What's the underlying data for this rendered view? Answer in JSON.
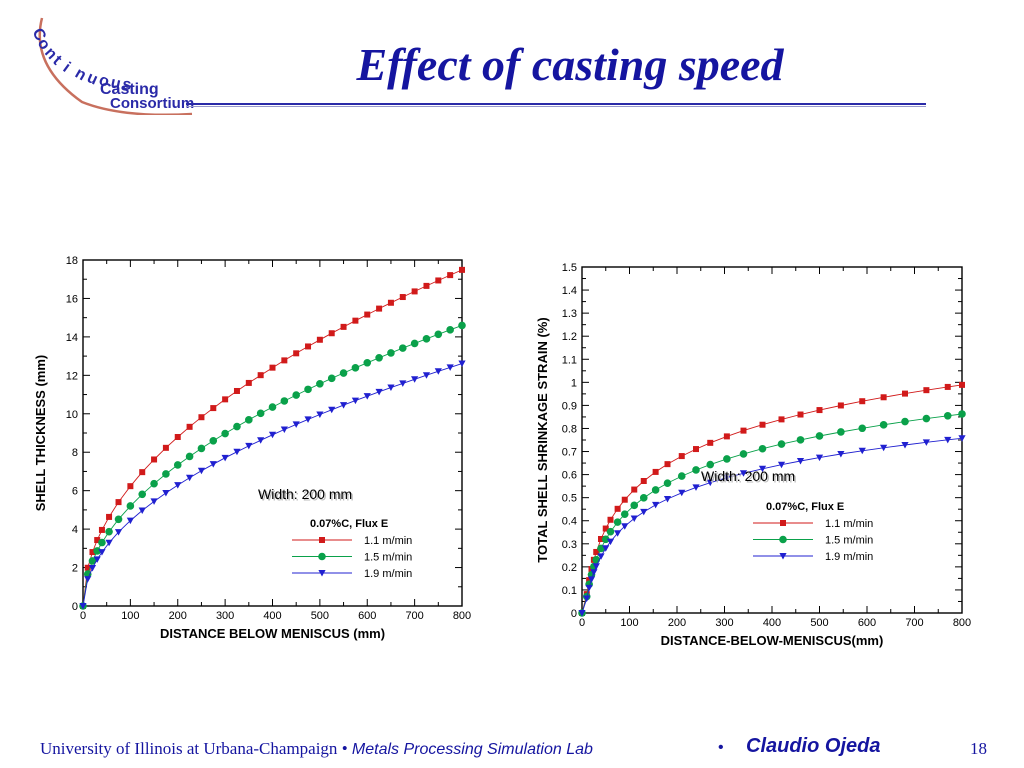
{
  "logo": {
    "lines": [
      "Continuous",
      "Casting",
      "Consortium"
    ]
  },
  "title": "Effect of casting speed",
  "footer": {
    "university": "University of Illinois at Urbana-Champaign",
    "separator": "•",
    "lab": "Metals Processing Simulation Lab",
    "author": "Claudio Ojeda",
    "page": "18"
  },
  "colors": {
    "red": "#d11a1a",
    "green": "#0aa14a",
    "blue": "#2020d0",
    "title": "#1515a0",
    "logo": "#c8705e"
  },
  "chart_data": [
    {
      "type": "line",
      "xlabel": "DISTANCE BELOW MENISCUS (mm)",
      "ylabel": "SHELL THICKNESS (mm)",
      "xlim": [
        0,
        800
      ],
      "ylim": [
        0,
        18
      ],
      "xticks": [
        0,
        100,
        200,
        300,
        400,
        500,
        600,
        700,
        800
      ],
      "yticks": [
        0,
        2,
        4,
        6,
        8,
        10,
        12,
        14,
        16,
        18
      ],
      "annotation": "Width: 200 mm",
      "legend_title": "0.07%C, Flux E",
      "grid": false,
      "series": [
        {
          "name": "1.1 m/min",
          "color": "#d11a1a",
          "marker": "square",
          "coef": 0.635,
          "exp": 0.496
        },
        {
          "name": "1.5 m/min",
          "color": "#0aa14a",
          "marker": "circle",
          "coef": 0.53,
          "exp": 0.496
        },
        {
          "name": "1.9 m/min",
          "color": "#2020d0",
          "marker": "triangle-down",
          "coef": 0.44,
          "exp": 0.502
        }
      ],
      "x": [
        0,
        10,
        20,
        30,
        40,
        55,
        75,
        100,
        125,
        150,
        175,
        200,
        225,
        250,
        275,
        300,
        325,
        350,
        375,
        400,
        425,
        450,
        475,
        500,
        525,
        550,
        575,
        600,
        625,
        650,
        675,
        700,
        725,
        750,
        775,
        800
      ]
    },
    {
      "type": "line",
      "xlabel": "DISTANCE-BELOW-MENISCUS(mm)",
      "ylabel": "TOTAL SHELL SHRINKAGE STRAIN (%)",
      "xlim": [
        0,
        800
      ],
      "ylim": [
        0,
        1.5
      ],
      "xticks": [
        0,
        100,
        200,
        300,
        400,
        500,
        600,
        700,
        800
      ],
      "yticks": [
        0,
        0.1,
        0.2,
        0.3,
        0.4,
        0.5,
        0.6,
        0.7,
        0.8,
        0.9,
        1,
        1.1,
        1.2,
        1.3,
        1.4,
        1.5
      ],
      "annotation": "Width: 200 mm",
      "legend_title": "0.07%C, Flux E",
      "grid": false,
      "series": [
        {
          "name": "1.1 m/min",
          "color": "#d11a1a",
          "marker": "square",
          "k": 0.235,
          "d0": 12,
          "a": 0.17,
          "b": 0.42
        },
        {
          "name": "1.5 m/min",
          "color": "#0aa14a",
          "marker": "circle",
          "k": 0.205,
          "d0": 12,
          "a": 0.17,
          "b": 0.42
        },
        {
          "name": "1.9 m/min",
          "color": "#2020d0",
          "marker": "triangle-down",
          "k": 0.18,
          "d0": 12,
          "a": 0.17,
          "b": 0.42
        }
      ],
      "x": [
        0,
        10,
        15,
        20,
        25,
        30,
        40,
        50,
        60,
        75,
        90,
        110,
        130,
        155,
        180,
        210,
        240,
        270,
        305,
        340,
        380,
        420,
        460,
        500,
        545,
        590,
        635,
        680,
        725,
        770,
        800
      ]
    }
  ]
}
